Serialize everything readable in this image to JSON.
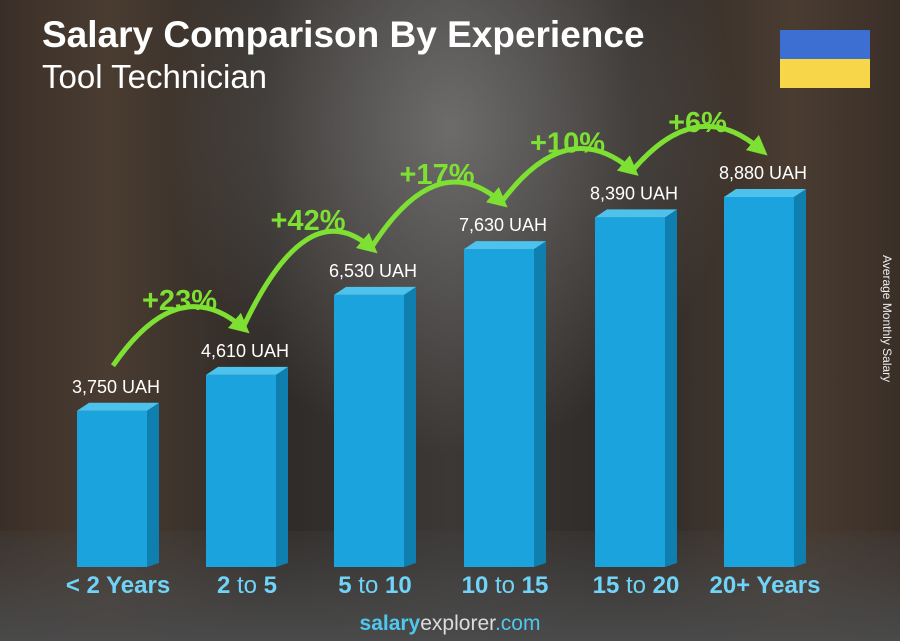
{
  "chart_data": {
    "type": "bar",
    "title": "Salary Comparison By Experience",
    "subtitle": "Tool Technician",
    "ylabel": "Average Monthly Salary",
    "categories": [
      "< 2 Years",
      "2 to 5",
      "5 to 10",
      "10 to 15",
      "15 to 20",
      "20+ Years"
    ],
    "values": [
      3750,
      4610,
      6530,
      7630,
      8390,
      8880
    ],
    "data_labels": [
      "3,750 UAH",
      "4,610 UAH",
      "6,530 UAH",
      "7,630 UAH",
      "8,390 UAH",
      "8,880 UAH"
    ],
    "changes": [
      "+23%",
      "+42%",
      "+17%",
      "+10%",
      "+6%"
    ],
    "unit": "UAH",
    "ylim": [
      0,
      9000
    ],
    "grid": false,
    "colors": {
      "bar": "#1aa3dc",
      "bar_side": "#0f7fb0",
      "bar_top": "#4cc2ec",
      "change": "#7ee032",
      "tick": "#6fd4f7"
    }
  },
  "flag": {
    "top": "#3c6fd1",
    "bottom": "#f7d64a"
  },
  "brand": {
    "part1": "salary",
    "part2": "explorer",
    "part3": ".com"
  }
}
